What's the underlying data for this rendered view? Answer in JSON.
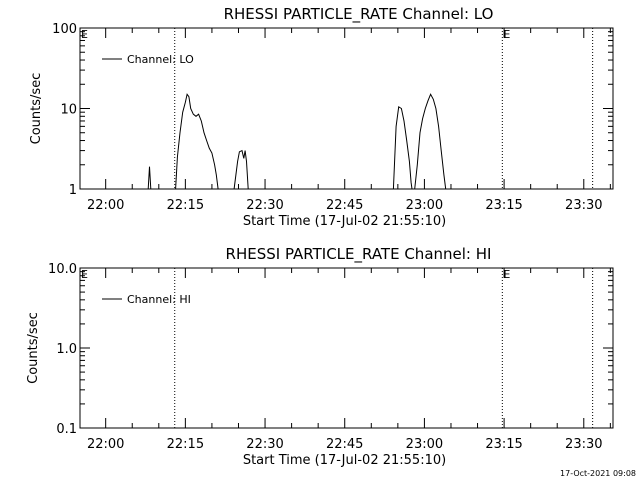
{
  "chart_data": [
    {
      "type": "line",
      "title": "RHESSI PARTICLE_RATE Channel: LO",
      "xlabel": "Start Time (17-Jul-02 21:55:10)",
      "ylabel": "Counts/sec",
      "y_scale": "log",
      "ylim": [
        1,
        100
      ],
      "y_ticks": [
        "1",
        "10",
        "100"
      ],
      "xlim": [
        "21:55:10",
        "23:35:30"
      ],
      "x_ticks": [
        "22:00",
        "22:15",
        "22:30",
        "22:45",
        "23:00",
        "23:15",
        "23:30"
      ],
      "legend": {
        "location": "top-left",
        "entries": [
          "Channel: LO"
        ]
      },
      "grid": false,
      "vertical_markers": [
        {
          "x": "22:13:00",
          "label": ""
        },
        {
          "x": "23:14:40",
          "label": "E"
        },
        {
          "x": "23:31:40",
          "label": ""
        }
      ],
      "edge_labels": [
        "E"
      ],
      "series": [
        {
          "name": "Channel: LO",
          "segments": [
            [
              [
                "22:08:00",
                1
              ],
              [
                "22:08:15",
                1.9
              ],
              [
                "22:08:30",
                1
              ]
            ],
            [
              [
                "22:13:10",
                1
              ],
              [
                "22:13:30",
                2.5
              ],
              [
                "22:14:00",
                5
              ],
              [
                "22:14:30",
                9
              ],
              [
                "22:15:00",
                12
              ],
              [
                "22:15:20",
                15
              ],
              [
                "22:15:40",
                14
              ],
              [
                "22:16:00",
                10
              ],
              [
                "22:16:30",
                8.5
              ],
              [
                "22:17:00",
                8
              ],
              [
                "22:17:30",
                8.5
              ],
              [
                "22:18:00",
                7
              ],
              [
                "22:18:30",
                5
              ],
              [
                "22:19:00",
                4
              ],
              [
                "22:19:30",
                3.2
              ],
              [
                "22:20:00",
                2.8
              ],
              [
                "22:20:30",
                2
              ],
              [
                "22:20:50",
                1.5
              ],
              [
                "22:21:10",
                1
              ]
            ],
            [
              [
                "22:24:10",
                1
              ],
              [
                "22:24:50",
                2.2
              ],
              [
                "22:25:10",
                2.9
              ],
              [
                "22:25:40",
                3
              ],
              [
                "22:26:00",
                2.4
              ],
              [
                "22:26:15",
                3
              ],
              [
                "22:26:30",
                2.2
              ],
              [
                "22:26:50",
                1
              ]
            ],
            [
              [
                "22:54:10",
                1
              ],
              [
                "22:54:40",
                6
              ],
              [
                "22:55:10",
                10.5
              ],
              [
                "22:55:40",
                10
              ],
              [
                "22:56:10",
                7
              ],
              [
                "22:56:40",
                4
              ],
              [
                "22:57:10",
                2.2
              ],
              [
                "22:57:30",
                1.2
              ],
              [
                "22:57:40",
                1
              ]
            ],
            [
              [
                "22:58:10",
                1
              ],
              [
                "22:58:40",
                2
              ],
              [
                "22:59:10",
                5
              ],
              [
                "22:59:40",
                7.5
              ],
              [
                "23:00:10",
                10
              ],
              [
                "23:00:40",
                12.5
              ],
              [
                "23:01:10",
                15
              ],
              [
                "23:01:40",
                13
              ],
              [
                "23:02:10",
                10
              ],
              [
                "23:02:40",
                6
              ],
              [
                "23:03:10",
                3
              ],
              [
                "23:03:40",
                1.5
              ],
              [
                "23:04:00",
                1
              ]
            ]
          ]
        }
      ]
    },
    {
      "type": "line",
      "title": "RHESSI PARTICLE_RATE Channel: HI",
      "xlabel": "Start Time (17-Jul-02 21:55:10)",
      "ylabel": "Counts/sec",
      "y_scale": "log",
      "ylim": [
        0.1,
        10
      ],
      "y_ticks": [
        "0.1",
        "1.0",
        "10.0"
      ],
      "xlim": [
        "21:55:10",
        "23:35:30"
      ],
      "x_ticks": [
        "22:00",
        "22:15",
        "22:30",
        "22:45",
        "23:00",
        "23:15",
        "23:30"
      ],
      "legend": {
        "location": "top-left",
        "entries": [
          "Channel: HI"
        ]
      },
      "grid": false,
      "vertical_markers": [
        {
          "x": "22:13:00",
          "label": ""
        },
        {
          "x": "23:14:40",
          "label": "E"
        },
        {
          "x": "23:31:40",
          "label": ""
        }
      ],
      "edge_labels": [
        "E"
      ],
      "series": [
        {
          "name": "Channel: HI",
          "segments": []
        }
      ]
    }
  ],
  "footer": {
    "timestamp": "17-Oct-2021 09:08"
  }
}
